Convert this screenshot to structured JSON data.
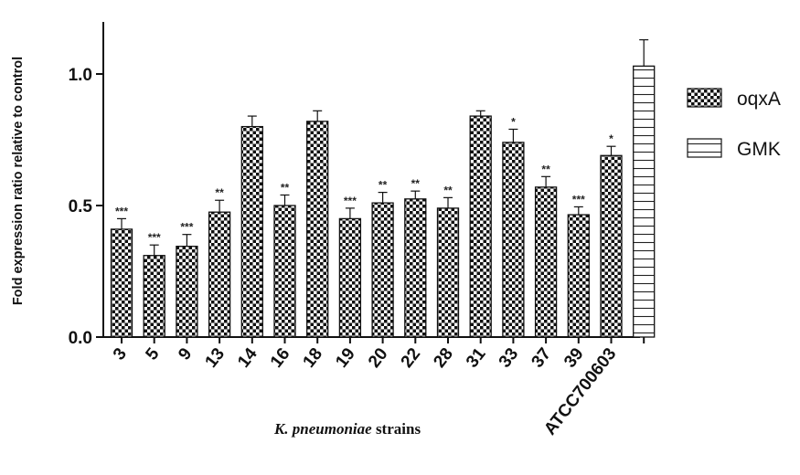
{
  "chart_data": {
    "type": "bar",
    "categories": [
      "3",
      "5",
      "9",
      "13",
      "14",
      "16",
      "18",
      "19",
      "20",
      "22",
      "28",
      "31",
      "33",
      "37",
      "39",
      "ATCC700603",
      ""
    ],
    "series": [
      {
        "name": "oqxA",
        "values": [
          0.41,
          0.31,
          0.345,
          0.475,
          0.8,
          0.5,
          0.82,
          0.45,
          0.51,
          0.525,
          0.49,
          0.84,
          0.74,
          0.57,
          0.465,
          0.69,
          null
        ],
        "errors": [
          0.04,
          0.04,
          0.045,
          0.045,
          0.04,
          0.04,
          0.04,
          0.04,
          0.04,
          0.03,
          0.04,
          0.02,
          0.05,
          0.04,
          0.03,
          0.035,
          null
        ],
        "significance": [
          "***",
          "***",
          "***",
          "**",
          "",
          "**",
          "",
          "***",
          "**",
          "**",
          "**",
          "",
          "*",
          "**",
          "***",
          "*",
          ""
        ],
        "pattern": "checker"
      },
      {
        "name": "GMK",
        "values": [
          null,
          null,
          null,
          null,
          null,
          null,
          null,
          null,
          null,
          null,
          null,
          null,
          null,
          null,
          null,
          null,
          1.03
        ],
        "errors": [
          null,
          null,
          null,
          null,
          null,
          null,
          null,
          null,
          null,
          null,
          null,
          null,
          null,
          null,
          null,
          null,
          0.1
        ],
        "significance": [
          "",
          "",
          "",
          "",
          "",
          "",
          "",
          "",
          "",
          "",
          "",
          "",
          "",
          "",
          "",
          "",
          ""
        ],
        "pattern": "horizontal-lines"
      }
    ],
    "ylabel": "Fold expression ratio relative to control",
    "xlabel_italic": "K. pneumoniae",
    "xlabel_rest": " strains",
    "ylim": [
      0,
      1.2
    ],
    "yticks": [
      0.0,
      0.5,
      1.0
    ],
    "ytick_labels": [
      "0.0",
      "0.5",
      "1.0"
    ],
    "grid": false,
    "legend_position": "right"
  }
}
